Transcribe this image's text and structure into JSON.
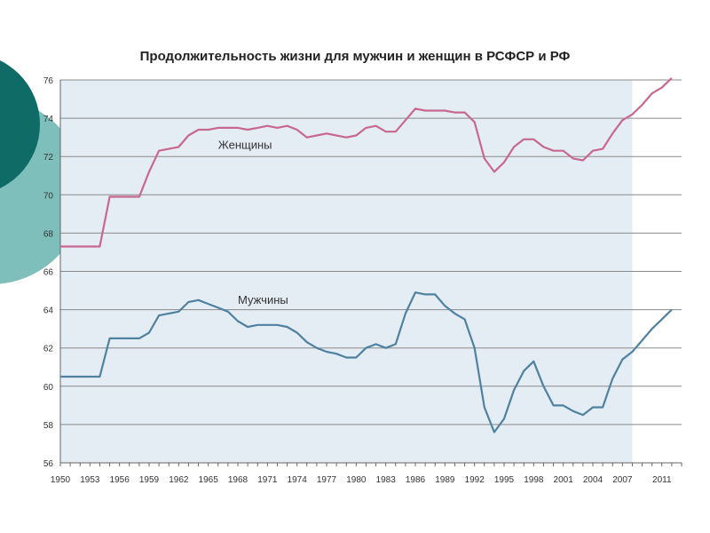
{
  "chart_data": {
    "type": "line",
    "title": "Продолжительность жизни для мужчин и женщин в РСФСР и РФ",
    "xlabel": "",
    "ylabel": "",
    "xlim": [
      1950,
      2013
    ],
    "ylim": [
      56,
      76
    ],
    "yticks": [
      56,
      58,
      60,
      62,
      64,
      66,
      68,
      70,
      72,
      74,
      76
    ],
    "xtick_labels": [
      1950,
      1953,
      1956,
      1959,
      1962,
      1965,
      1968,
      1971,
      1974,
      1977,
      1980,
      1983,
      1986,
      1989,
      1992,
      1995,
      1998,
      2001,
      2004,
      2007,
      2011
    ],
    "grid": "horizontal",
    "shaded_region": [
      1950,
      2008
    ],
    "series": [
      {
        "name": "Женщины",
        "color": "#c86890",
        "points": [
          [
            1950,
            67.3
          ],
          [
            1954,
            67.3
          ],
          [
            1955,
            69.9
          ],
          [
            1958,
            69.9
          ],
          [
            1959,
            71.2
          ],
          [
            1960,
            72.3
          ],
          [
            1961,
            72.4
          ],
          [
            1962,
            72.5
          ],
          [
            1963,
            73.1
          ],
          [
            1964,
            73.4
          ],
          [
            1965,
            73.4
          ],
          [
            1966,
            73.5
          ],
          [
            1967,
            73.5
          ],
          [
            1968,
            73.5
          ],
          [
            1969,
            73.4
          ],
          [
            1970,
            73.5
          ],
          [
            1971,
            73.6
          ],
          [
            1972,
            73.5
          ],
          [
            1973,
            73.6
          ],
          [
            1974,
            73.4
          ],
          [
            1975,
            73.0
          ],
          [
            1976,
            73.1
          ],
          [
            1977,
            73.2
          ],
          [
            1978,
            73.1
          ],
          [
            1979,
            73.0
          ],
          [
            1980,
            73.1
          ],
          [
            1981,
            73.5
          ],
          [
            1982,
            73.6
          ],
          [
            1983,
            73.3
          ],
          [
            1984,
            73.3
          ],
          [
            1985,
            73.9
          ],
          [
            1986,
            74.5
          ],
          [
            1987,
            74.4
          ],
          [
            1988,
            74.4
          ],
          [
            1989,
            74.4
          ],
          [
            1990,
            74.3
          ],
          [
            1991,
            74.3
          ],
          [
            1992,
            73.8
          ],
          [
            1993,
            71.9
          ],
          [
            1994,
            71.2
          ],
          [
            1995,
            71.7
          ],
          [
            1996,
            72.5
          ],
          [
            1997,
            72.9
          ],
          [
            1998,
            72.9
          ],
          [
            1999,
            72.5
          ],
          [
            2000,
            72.3
          ],
          [
            2001,
            72.3
          ],
          [
            2002,
            71.9
          ],
          [
            2003,
            71.8
          ],
          [
            2004,
            72.3
          ],
          [
            2005,
            72.4
          ],
          [
            2006,
            73.2
          ],
          [
            2007,
            73.9
          ],
          [
            2008,
            74.2
          ],
          [
            2009,
            74.7
          ],
          [
            2010,
            75.3
          ],
          [
            2011,
            75.6
          ],
          [
            2012,
            76.1
          ]
        ]
      },
      {
        "name": "Мужчины",
        "color": "#4f81a1",
        "points": [
          [
            1950,
            60.5
          ],
          [
            1954,
            60.5
          ],
          [
            1955,
            62.5
          ],
          [
            1958,
            62.5
          ],
          [
            1959,
            62.8
          ],
          [
            1960,
            63.7
          ],
          [
            1961,
            63.8
          ],
          [
            1962,
            63.9
          ],
          [
            1963,
            64.4
          ],
          [
            1964,
            64.5
          ],
          [
            1965,
            64.3
          ],
          [
            1966,
            64.1
          ],
          [
            1967,
            63.9
          ],
          [
            1968,
            63.4
          ],
          [
            1969,
            63.1
          ],
          [
            1970,
            63.2
          ],
          [
            1971,
            63.2
          ],
          [
            1972,
            63.2
          ],
          [
            1973,
            63.1
          ],
          [
            1974,
            62.8
          ],
          [
            1975,
            62.3
          ],
          [
            1976,
            62.0
          ],
          [
            1977,
            61.8
          ],
          [
            1978,
            61.7
          ],
          [
            1979,
            61.5
          ],
          [
            1980,
            61.5
          ],
          [
            1981,
            62.0
          ],
          [
            1982,
            62.2
          ],
          [
            1983,
            62.0
          ],
          [
            1984,
            62.2
          ],
          [
            1985,
            63.8
          ],
          [
            1986,
            64.9
          ],
          [
            1987,
            64.8
          ],
          [
            1988,
            64.8
          ],
          [
            1989,
            64.2
          ],
          [
            1990,
            63.8
          ],
          [
            1991,
            63.5
          ],
          [
            1992,
            62.0
          ],
          [
            1993,
            58.9
          ],
          [
            1994,
            57.6
          ],
          [
            1995,
            58.3
          ],
          [
            1996,
            59.8
          ],
          [
            1997,
            60.8
          ],
          [
            1998,
            61.3
          ],
          [
            1999,
            60.0
          ],
          [
            2000,
            59.0
          ],
          [
            2001,
            59.0
          ],
          [
            2002,
            58.7
          ],
          [
            2003,
            58.5
          ],
          [
            2004,
            58.9
          ],
          [
            2005,
            58.9
          ],
          [
            2006,
            60.4
          ],
          [
            2007,
            61.4
          ],
          [
            2008,
            61.8
          ],
          [
            2009,
            62.4
          ],
          [
            2010,
            63.0
          ],
          [
            2011,
            63.5
          ],
          [
            2012,
            64.0
          ]
        ]
      }
    ]
  },
  "labels": {
    "women": "Женщины",
    "men": "Мужчины"
  },
  "colors": {
    "plot_bg": "#e4ecf4",
    "grid": "#8a8a8a",
    "deco_teal_dark": "#0e6b66",
    "deco_teal_light": "#7fbfbb"
  }
}
